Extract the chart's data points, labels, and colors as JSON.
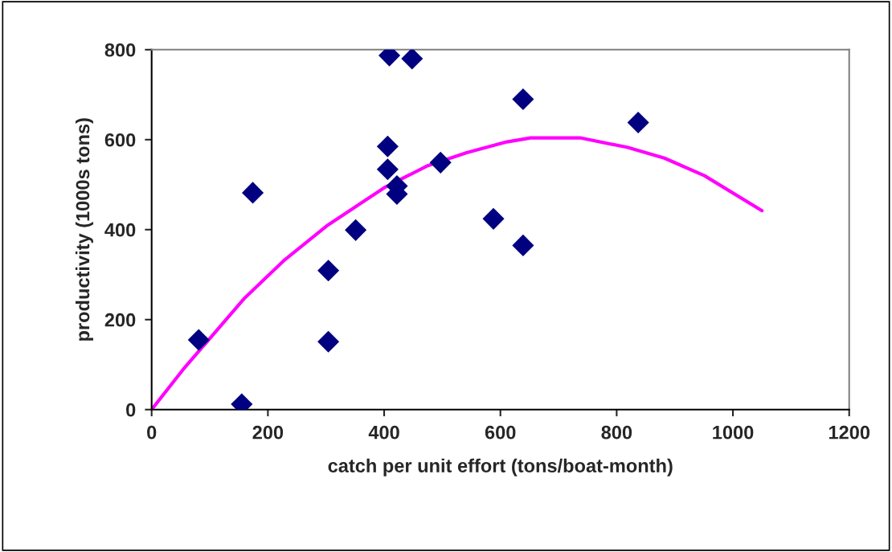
{
  "chart_data": {
    "type": "scatter",
    "xlabel": "catch per unit effort (tons/boat-month)",
    "ylabel": "productivity (1000s tons)",
    "xlim": [
      0,
      1200
    ],
    "xticks": [
      0,
      200,
      400,
      600,
      800,
      1000,
      1200
    ],
    "ylim": [
      0,
      800
    ],
    "yticks": [
      0,
      200,
      400,
      600,
      800
    ],
    "grid": false,
    "series": [
      {
        "color": "#000080",
        "marker": "diamond",
        "x": [
          81,
          155,
          174,
          304,
          304,
          351,
          409,
          448,
          406,
          406,
          422,
          422,
          497,
          588,
          639,
          639,
          837
        ],
        "values": [
          155,
          12,
          482,
          309,
          151,
          399,
          787,
          780,
          585,
          534,
          497,
          479,
          549,
          424,
          690,
          365,
          638
        ]
      },
      {
        "type": "line",
        "color": "#ff00ff",
        "marker": "none",
        "line_style": "solid",
        "x": [
          0,
          54,
          82,
          160,
          229,
          303,
          400,
          473,
          542,
          611,
          652,
          737,
          818,
          882,
          951,
          1050
        ],
        "values": [
          0,
          89,
          131,
          248,
          333,
          410,
          493,
          541,
          571,
          595,
          604,
          604,
          583,
          559,
          520,
          442
        ]
      }
    ]
  }
}
